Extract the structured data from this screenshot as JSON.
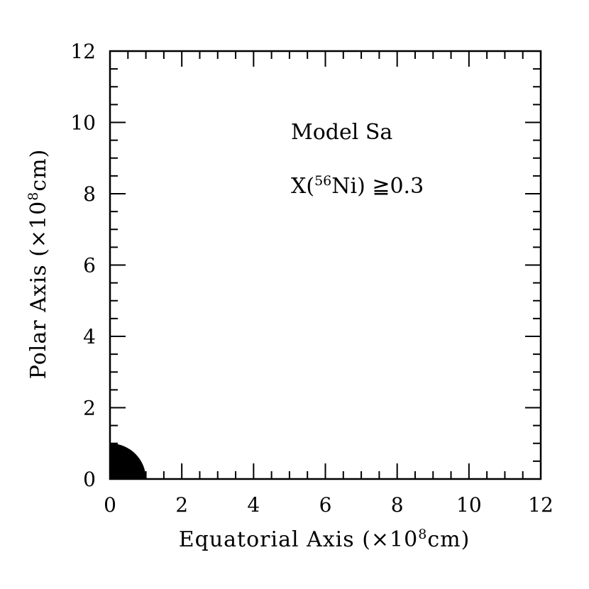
{
  "chart_data": {
    "type": "scatter",
    "xlabel": {
      "pre": "Equatorial Axis (×10",
      "sup": "8",
      "post": "cm)"
    },
    "ylabel": {
      "pre": "Polar Axis (×10",
      "sup": "8",
      "post": "cm)"
    },
    "xlim": [
      0,
      12
    ],
    "ylim": [
      0,
      12
    ],
    "x_ticks": [
      "0",
      "2",
      "4",
      "6",
      "8",
      "10",
      "12"
    ],
    "y_ticks": [
      "0",
      "2",
      "4",
      "6",
      "8",
      "10",
      "12"
    ],
    "minor_tick_step": 0.5,
    "grid": false,
    "annotations": {
      "model": "Model Sa",
      "condition": {
        "pre": "X(",
        "sup": "56",
        "post": "Ni)  ≧0.3"
      }
    },
    "region": {
      "shape": "quarter-disk",
      "center": [
        0,
        0
      ],
      "radius": 1.0,
      "color": "#000000"
    }
  }
}
